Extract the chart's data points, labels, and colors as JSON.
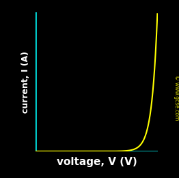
{
  "background_color": "#000000",
  "axis_color": "#00ffff",
  "curve_color": "#ffff00",
  "text_color": "#ffffff",
  "watermark_color": "#cccc00",
  "xlabel": "voltage, V (V)",
  "ylabel": "current, I (A)",
  "watermark": "© www.gcse.com",
  "xlabel_fontsize": 11,
  "ylabel_fontsize": 9,
  "watermark_fontsize": 5.5,
  "axis_linewidth": 1.8,
  "curve_linewidth": 1.5,
  "xlim": [
    0,
    1.0
  ],
  "ylim": [
    0,
    1.0
  ],
  "diode_knee": 0.88,
  "diode_k": 22.0
}
